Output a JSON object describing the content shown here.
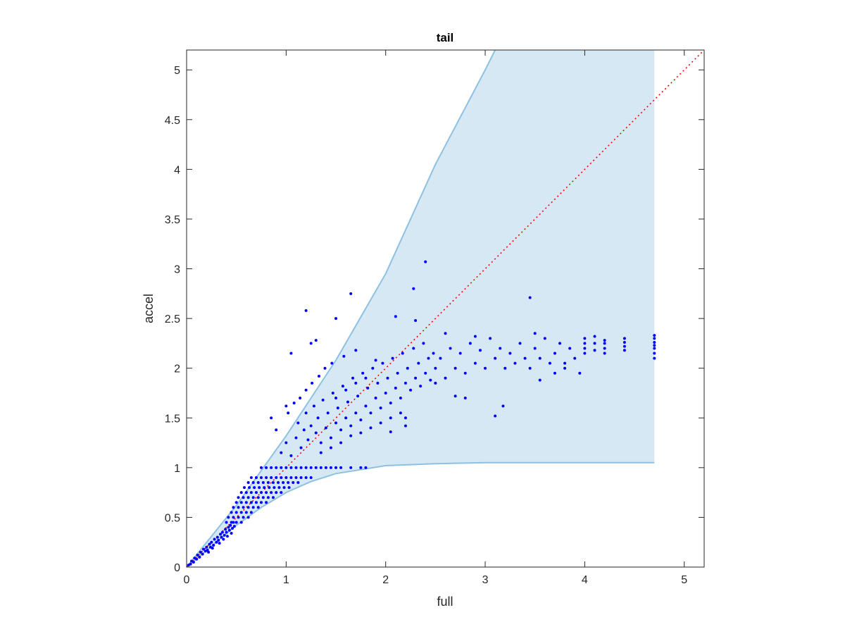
{
  "chart_data": {
    "type": "scatter",
    "title": "tail",
    "xlabel": "full",
    "ylabel": "accel",
    "xlim": [
      0,
      5.2
    ],
    "ylim": [
      0,
      5.2
    ],
    "xticks": [
      0,
      1,
      2,
      3,
      4,
      5
    ],
    "xtick_labels": [
      "0",
      "1",
      "2",
      "3",
      "4",
      "5"
    ],
    "yticks": [
      0,
      0.5,
      1,
      1.5,
      2,
      2.5,
      3,
      3.5,
      4,
      4.5,
      5
    ],
    "ytick_labels": [
      "0",
      "0.5",
      "1",
      "1.5",
      "2",
      "2.5",
      "3",
      "3.5",
      "4",
      "4.5",
      "5"
    ],
    "grid": false,
    "legend": "none",
    "colors": {
      "points": "#0000ff",
      "band_fill": "#d6e8f4",
      "band_edge": "#8ec1e1",
      "reference_line": "#ff0000",
      "axes": "#262626"
    },
    "reference_line": {
      "style": "dotted",
      "x": [
        0,
        5.2
      ],
      "y": [
        0,
        5.2
      ]
    },
    "band": {
      "x_max": 4.7,
      "upper": {
        "x": [
          0,
          0.5,
          1.0,
          1.5,
          2.0,
          2.5,
          3.0,
          3.1
        ],
        "y": [
          0,
          0.62,
          1.32,
          2.08,
          2.95,
          4.05,
          5.0,
          5.2
        ]
      },
      "lower": {
        "x": [
          0,
          0.25,
          0.5,
          0.75,
          1.0,
          1.25,
          1.5,
          2.0,
          2.5,
          3.0,
          4.0,
          4.7
        ],
        "y": [
          0,
          0.21,
          0.42,
          0.6,
          0.75,
          0.86,
          0.94,
          1.02,
          1.04,
          1.05,
          1.05,
          1.05
        ]
      }
    },
    "points": [
      {
        "x": 0.02,
        "y": 0.02
      },
      {
        "x": 0.04,
        "y": 0.03
      },
      {
        "x": 0.05,
        "y": 0.06
      },
      {
        "x": 0.07,
        "y": 0.05
      },
      {
        "x": 0.08,
        "y": 0.09
      },
      {
        "x": 0.1,
        "y": 0.08
      },
      {
        "x": 0.11,
        "y": 0.12
      },
      {
        "x": 0.13,
        "y": 0.1
      },
      {
        "x": 0.14,
        "y": 0.15
      },
      {
        "x": 0.16,
        "y": 0.13
      },
      {
        "x": 0.17,
        "y": 0.18
      },
      {
        "x": 0.19,
        "y": 0.16
      },
      {
        "x": 0.2,
        "y": 0.2
      },
      {
        "x": 0.21,
        "y": 0.17
      },
      {
        "x": 0.23,
        "y": 0.23
      },
      {
        "x": 0.24,
        "y": 0.2
      },
      {
        "x": 0.25,
        "y": 0.25
      },
      {
        "x": 0.27,
        "y": 0.22
      },
      {
        "x": 0.28,
        "y": 0.28
      },
      {
        "x": 0.3,
        "y": 0.25
      },
      {
        "x": 0.31,
        "y": 0.3
      },
      {
        "x": 0.32,
        "y": 0.27
      },
      {
        "x": 0.34,
        "y": 0.33
      },
      {
        "x": 0.35,
        "y": 0.3
      },
      {
        "x": 0.36,
        "y": 0.35
      },
      {
        "x": 0.38,
        "y": 0.32
      },
      {
        "x": 0.39,
        "y": 0.38
      },
      {
        "x": 0.4,
        "y": 0.35
      },
      {
        "x": 0.42,
        "y": 0.4
      },
      {
        "x": 0.43,
        "y": 0.37
      },
      {
        "x": 0.44,
        "y": 0.42
      },
      {
        "x": 0.46,
        "y": 0.39
      },
      {
        "x": 0.47,
        "y": 0.45
      },
      {
        "x": 0.48,
        "y": 0.41
      },
      {
        "x": 0.22,
        "y": 0.15
      },
      {
        "x": 0.26,
        "y": 0.19
      },
      {
        "x": 0.33,
        "y": 0.24
      },
      {
        "x": 0.37,
        "y": 0.28
      },
      {
        "x": 0.41,
        "y": 0.31
      },
      {
        "x": 0.45,
        "y": 0.34
      },
      {
        "x": 0.4,
        "y": 0.45
      },
      {
        "x": 0.45,
        "y": 0.45
      },
      {
        "x": 0.5,
        "y": 0.45
      },
      {
        "x": 0.55,
        "y": 0.45
      },
      {
        "x": 0.42,
        "y": 0.5
      },
      {
        "x": 0.47,
        "y": 0.5
      },
      {
        "x": 0.52,
        "y": 0.5
      },
      {
        "x": 0.57,
        "y": 0.5
      },
      {
        "x": 0.62,
        "y": 0.5
      },
      {
        "x": 0.45,
        "y": 0.55
      },
      {
        "x": 0.5,
        "y": 0.55
      },
      {
        "x": 0.55,
        "y": 0.55
      },
      {
        "x": 0.6,
        "y": 0.55
      },
      {
        "x": 0.65,
        "y": 0.55
      },
      {
        "x": 0.47,
        "y": 0.6
      },
      {
        "x": 0.52,
        "y": 0.6
      },
      {
        "x": 0.57,
        "y": 0.6
      },
      {
        "x": 0.62,
        "y": 0.6
      },
      {
        "x": 0.67,
        "y": 0.6
      },
      {
        "x": 0.72,
        "y": 0.6
      },
      {
        "x": 0.5,
        "y": 0.65
      },
      {
        "x": 0.55,
        "y": 0.65
      },
      {
        "x": 0.6,
        "y": 0.65
      },
      {
        "x": 0.65,
        "y": 0.65
      },
      {
        "x": 0.7,
        "y": 0.65
      },
      {
        "x": 0.75,
        "y": 0.65
      },
      {
        "x": 0.8,
        "y": 0.65
      },
      {
        "x": 0.52,
        "y": 0.7
      },
      {
        "x": 0.57,
        "y": 0.7
      },
      {
        "x": 0.62,
        "y": 0.7
      },
      {
        "x": 0.67,
        "y": 0.7
      },
      {
        "x": 0.72,
        "y": 0.7
      },
      {
        "x": 0.77,
        "y": 0.7
      },
      {
        "x": 0.82,
        "y": 0.7
      },
      {
        "x": 0.87,
        "y": 0.7
      },
      {
        "x": 0.55,
        "y": 0.75
      },
      {
        "x": 0.6,
        "y": 0.75
      },
      {
        "x": 0.65,
        "y": 0.75
      },
      {
        "x": 0.7,
        "y": 0.75
      },
      {
        "x": 0.75,
        "y": 0.75
      },
      {
        "x": 0.8,
        "y": 0.75
      },
      {
        "x": 0.85,
        "y": 0.75
      },
      {
        "x": 0.9,
        "y": 0.75
      },
      {
        "x": 0.95,
        "y": 0.75
      },
      {
        "x": 0.58,
        "y": 0.8
      },
      {
        "x": 0.63,
        "y": 0.8
      },
      {
        "x": 0.68,
        "y": 0.8
      },
      {
        "x": 0.73,
        "y": 0.8
      },
      {
        "x": 0.78,
        "y": 0.8
      },
      {
        "x": 0.83,
        "y": 0.8
      },
      {
        "x": 0.88,
        "y": 0.8
      },
      {
        "x": 0.93,
        "y": 0.8
      },
      {
        "x": 0.98,
        "y": 0.8
      },
      {
        "x": 1.03,
        "y": 0.8
      },
      {
        "x": 0.62,
        "y": 0.85
      },
      {
        "x": 0.67,
        "y": 0.85
      },
      {
        "x": 0.72,
        "y": 0.85
      },
      {
        "x": 0.77,
        "y": 0.85
      },
      {
        "x": 0.82,
        "y": 0.85
      },
      {
        "x": 0.87,
        "y": 0.85
      },
      {
        "x": 0.92,
        "y": 0.85
      },
      {
        "x": 0.97,
        "y": 0.85
      },
      {
        "x": 1.02,
        "y": 0.85
      },
      {
        "x": 1.07,
        "y": 0.85
      },
      {
        "x": 1.12,
        "y": 0.85
      },
      {
        "x": 0.65,
        "y": 0.9
      },
      {
        "x": 0.7,
        "y": 0.9
      },
      {
        "x": 0.75,
        "y": 0.9
      },
      {
        "x": 0.8,
        "y": 0.9
      },
      {
        "x": 0.85,
        "y": 0.9
      },
      {
        "x": 0.9,
        "y": 0.9
      },
      {
        "x": 0.95,
        "y": 0.9
      },
      {
        "x": 1.0,
        "y": 0.9
      },
      {
        "x": 1.05,
        "y": 0.9
      },
      {
        "x": 1.1,
        "y": 0.9
      },
      {
        "x": 1.15,
        "y": 0.9
      },
      {
        "x": 1.2,
        "y": 0.9
      },
      {
        "x": 1.25,
        "y": 0.9
      },
      {
        "x": 0.75,
        "y": 1.0
      },
      {
        "x": 0.8,
        "y": 1.0
      },
      {
        "x": 0.85,
        "y": 1.0
      },
      {
        "x": 0.9,
        "y": 1.0
      },
      {
        "x": 0.95,
        "y": 1.0
      },
      {
        "x": 1.0,
        "y": 1.0
      },
      {
        "x": 1.05,
        "y": 1.0
      },
      {
        "x": 1.1,
        "y": 1.0
      },
      {
        "x": 1.15,
        "y": 1.0
      },
      {
        "x": 1.2,
        "y": 1.0
      },
      {
        "x": 1.25,
        "y": 1.0
      },
      {
        "x": 1.3,
        "y": 1.0
      },
      {
        "x": 1.35,
        "y": 1.0
      },
      {
        "x": 1.4,
        "y": 1.0
      },
      {
        "x": 1.45,
        "y": 1.0
      },
      {
        "x": 1.5,
        "y": 1.0
      },
      {
        "x": 1.55,
        "y": 1.0
      },
      {
        "x": 1.65,
        "y": 1.0
      },
      {
        "x": 1.75,
        "y": 1.0
      },
      {
        "x": 1.8,
        "y": 1.0
      },
      {
        "x": 0.95,
        "y": 1.15
      },
      {
        "x": 1.0,
        "y": 1.25
      },
      {
        "x": 1.05,
        "y": 1.12
      },
      {
        "x": 1.1,
        "y": 1.3
      },
      {
        "x": 1.12,
        "y": 1.45
      },
      {
        "x": 1.15,
        "y": 1.2
      },
      {
        "x": 1.18,
        "y": 1.38
      },
      {
        "x": 1.2,
        "y": 1.55
      },
      {
        "x": 1.22,
        "y": 1.28
      },
      {
        "x": 1.25,
        "y": 1.42
      },
      {
        "x": 1.28,
        "y": 1.62
      },
      {
        "x": 1.3,
        "y": 1.35
      },
      {
        "x": 1.32,
        "y": 1.5
      },
      {
        "x": 1.35,
        "y": 1.25
      },
      {
        "x": 1.37,
        "y": 1.68
      },
      {
        "x": 1.4,
        "y": 1.4
      },
      {
        "x": 1.42,
        "y": 1.55
      },
      {
        "x": 1.45,
        "y": 1.3
      },
      {
        "x": 1.47,
        "y": 1.75
      },
      {
        "x": 1.5,
        "y": 1.45
      },
      {
        "x": 1.52,
        "y": 1.6
      },
      {
        "x": 1.55,
        "y": 1.38
      },
      {
        "x": 1.57,
        "y": 1.82
      },
      {
        "x": 1.6,
        "y": 1.5
      },
      {
        "x": 1.62,
        "y": 1.66
      },
      {
        "x": 1.65,
        "y": 1.42
      },
      {
        "x": 1.67,
        "y": 1.9
      },
      {
        "x": 1.7,
        "y": 1.55
      },
      {
        "x": 1.72,
        "y": 1.72
      },
      {
        "x": 1.75,
        "y": 1.48
      },
      {
        "x": 1.77,
        "y": 1.95
      },
      {
        "x": 1.8,
        "y": 1.62
      },
      {
        "x": 1.82,
        "y": 1.8
      },
      {
        "x": 1.85,
        "y": 1.55
      },
      {
        "x": 1.87,
        "y": 2.0
      },
      {
        "x": 1.9,
        "y": 1.7
      },
      {
        "x": 1.92,
        "y": 1.85
      },
      {
        "x": 1.95,
        "y": 1.6
      },
      {
        "x": 1.97,
        "y": 2.05
      },
      {
        "x": 2.0,
        "y": 1.75
      },
      {
        "x": 2.02,
        "y": 1.9
      },
      {
        "x": 2.05,
        "y": 1.65
      },
      {
        "x": 2.07,
        "y": 2.1
      },
      {
        "x": 2.1,
        "y": 1.8
      },
      {
        "x": 2.12,
        "y": 1.95
      },
      {
        "x": 2.15,
        "y": 1.7
      },
      {
        "x": 2.17,
        "y": 2.15
      },
      {
        "x": 2.2,
        "y": 1.85
      },
      {
        "x": 2.22,
        "y": 2.0
      },
      {
        "x": 2.25,
        "y": 1.78
      },
      {
        "x": 2.28,
        "y": 2.2
      },
      {
        "x": 2.3,
        "y": 1.9
      },
      {
        "x": 2.33,
        "y": 2.05
      },
      {
        "x": 2.35,
        "y": 1.82
      },
      {
        "x": 2.38,
        "y": 2.25
      },
      {
        "x": 2.4,
        "y": 1.95
      },
      {
        "x": 2.43,
        "y": 2.1
      },
      {
        "x": 2.45,
        "y": 1.88
      },
      {
        "x": 2.48,
        "y": 2.15
      },
      {
        "x": 2.5,
        "y": 2.0
      },
      {
        "x": 1.02,
        "y": 1.55
      },
      {
        "x": 1.08,
        "y": 1.65
      },
      {
        "x": 1.14,
        "y": 1.7
      },
      {
        "x": 1.2,
        "y": 1.78
      },
      {
        "x": 1.26,
        "y": 1.85
      },
      {
        "x": 1.33,
        "y": 1.92
      },
      {
        "x": 1.39,
        "y": 2.0
      },
      {
        "x": 1.46,
        "y": 2.05
      },
      {
        "x": 1.58,
        "y": 2.12
      },
      {
        "x": 1.7,
        "y": 2.18
      },
      {
        "x": 1.35,
        "y": 1.15
      },
      {
        "x": 1.45,
        "y": 1.2
      },
      {
        "x": 1.55,
        "y": 1.25
      },
      {
        "x": 1.65,
        "y": 1.32
      },
      {
        "x": 1.75,
        "y": 1.35
      },
      {
        "x": 1.85,
        "y": 1.4
      },
      {
        "x": 1.95,
        "y": 1.45
      },
      {
        "x": 2.05,
        "y": 1.5
      },
      {
        "x": 2.15,
        "y": 1.55
      },
      {
        "x": 2.2,
        "y": 1.5
      },
      {
        "x": 1.5,
        "y": 1.7
      },
      {
        "x": 1.6,
        "y": 1.78
      },
      {
        "x": 1.7,
        "y": 1.85
      },
      {
        "x": 1.8,
        "y": 1.9
      },
      {
        "x": 1.9,
        "y": 2.08
      },
      {
        "x": 2.55,
        "y": 2.1
      },
      {
        "x": 2.6,
        "y": 1.9
      },
      {
        "x": 2.65,
        "y": 2.2
      },
      {
        "x": 2.7,
        "y": 2.0
      },
      {
        "x": 2.75,
        "y": 2.15
      },
      {
        "x": 2.8,
        "y": 1.95
      },
      {
        "x": 2.85,
        "y": 2.25
      },
      {
        "x": 2.9,
        "y": 2.05
      },
      {
        "x": 2.95,
        "y": 2.18
      },
      {
        "x": 3.0,
        "y": 2.0
      },
      {
        "x": 3.05,
        "y": 2.3
      },
      {
        "x": 3.1,
        "y": 2.1
      },
      {
        "x": 3.15,
        "y": 2.2
      },
      {
        "x": 3.2,
        "y": 2.0
      },
      {
        "x": 3.25,
        "y": 2.15
      },
      {
        "x": 3.3,
        "y": 2.05
      },
      {
        "x": 3.35,
        "y": 2.25
      },
      {
        "x": 3.4,
        "y": 2.1
      },
      {
        "x": 3.45,
        "y": 2.0
      },
      {
        "x": 3.5,
        "y": 2.2
      },
      {
        "x": 3.55,
        "y": 2.1
      },
      {
        "x": 3.6,
        "y": 2.3
      },
      {
        "x": 3.65,
        "y": 2.05
      },
      {
        "x": 3.7,
        "y": 2.15
      },
      {
        "x": 3.75,
        "y": 2.25
      },
      {
        "x": 3.8,
        "y": 2.0
      },
      {
        "x": 3.85,
        "y": 2.2
      },
      {
        "x": 3.9,
        "y": 2.1
      },
      {
        "x": 2.6,
        "y": 2.35
      },
      {
        "x": 2.9,
        "y": 2.32
      },
      {
        "x": 3.5,
        "y": 2.35
      },
      {
        "x": 3.7,
        "y": 1.95
      },
      {
        "x": 3.8,
        "y": 2.05
      },
      {
        "x": 4.0,
        "y": 2.15
      },
      {
        "x": 4.0,
        "y": 2.2
      },
      {
        "x": 4.0,
        "y": 2.25
      },
      {
        "x": 4.0,
        "y": 2.3
      },
      {
        "x": 4.1,
        "y": 2.18
      },
      {
        "x": 4.1,
        "y": 2.25
      },
      {
        "x": 4.1,
        "y": 2.32
      },
      {
        "x": 4.2,
        "y": 2.15
      },
      {
        "x": 4.2,
        "y": 2.2
      },
      {
        "x": 4.2,
        "y": 2.25
      },
      {
        "x": 4.2,
        "y": 2.28
      },
      {
        "x": 4.4,
        "y": 2.18
      },
      {
        "x": 4.4,
        "y": 2.22
      },
      {
        "x": 4.4,
        "y": 2.26
      },
      {
        "x": 4.4,
        "y": 2.3
      },
      {
        "x": 4.7,
        "y": 2.1
      },
      {
        "x": 4.7,
        "y": 2.15
      },
      {
        "x": 4.7,
        "y": 2.2
      },
      {
        "x": 4.7,
        "y": 2.23
      },
      {
        "x": 4.7,
        "y": 2.26
      },
      {
        "x": 4.7,
        "y": 2.3
      },
      {
        "x": 4.7,
        "y": 2.33
      },
      {
        "x": 1.05,
        "y": 2.15
      },
      {
        "x": 1.2,
        "y": 2.58
      },
      {
        "x": 1.5,
        "y": 2.5
      },
      {
        "x": 1.65,
        "y": 2.75
      },
      {
        "x": 2.28,
        "y": 2.8
      },
      {
        "x": 2.3,
        "y": 2.48
      },
      {
        "x": 2.4,
        "y": 3.07
      },
      {
        "x": 3.45,
        "y": 2.71
      },
      {
        "x": 2.1,
        "y": 2.52
      },
      {
        "x": 1.3,
        "y": 2.28
      },
      {
        "x": 1.25,
        "y": 2.25
      },
      {
        "x": 1.0,
        "y": 1.62
      },
      {
        "x": 0.85,
        "y": 1.5
      },
      {
        "x": 0.9,
        "y": 1.38
      },
      {
        "x": 3.1,
        "y": 1.52
      },
      {
        "x": 3.18,
        "y": 1.62
      },
      {
        "x": 2.2,
        "y": 1.42
      },
      {
        "x": 2.05,
        "y": 1.36
      },
      {
        "x": 3.55,
        "y": 1.88
      },
      {
        "x": 2.7,
        "y": 1.72
      },
      {
        "x": 2.5,
        "y": 1.85
      },
      {
        "x": 2.8,
        "y": 1.7
      },
      {
        "x": 3.95,
        "y": 1.95
      }
    ]
  }
}
